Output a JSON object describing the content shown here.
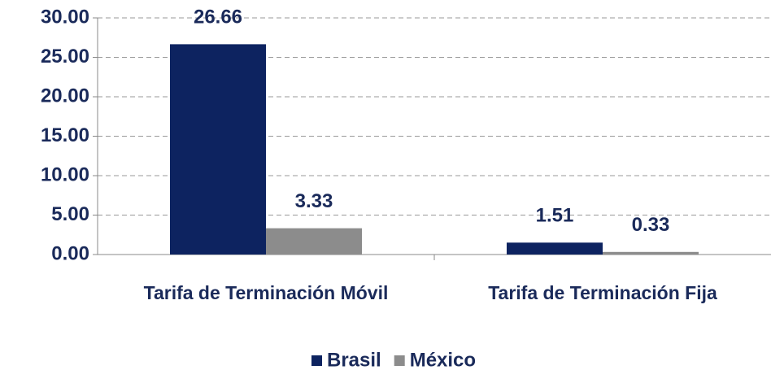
{
  "chart_data": {
    "type": "bar",
    "categories": [
      "Tarifa de Terminación Móvil",
      "Tarifa de Terminación Fija"
    ],
    "series": [
      {
        "name": "Brasil",
        "color": "#0d2360",
        "values": [
          26.66,
          1.51
        ]
      },
      {
        "name": "México",
        "color": "#8c8c8c",
        "values": [
          3.33,
          0.33
        ]
      }
    ],
    "ylim": [
      0,
      30
    ],
    "yticks": [
      {
        "value": 0,
        "label": "0.00"
      },
      {
        "value": 5,
        "label": "5.00"
      },
      {
        "value": 10,
        "label": "10.00"
      },
      {
        "value": 15,
        "label": "15.00"
      },
      {
        "value": 20,
        "label": "20.00"
      },
      {
        "value": 25,
        "label": "25.00"
      },
      {
        "value": 30,
        "label": "30.00"
      }
    ],
    "grid": true,
    "legend": "bottom"
  }
}
